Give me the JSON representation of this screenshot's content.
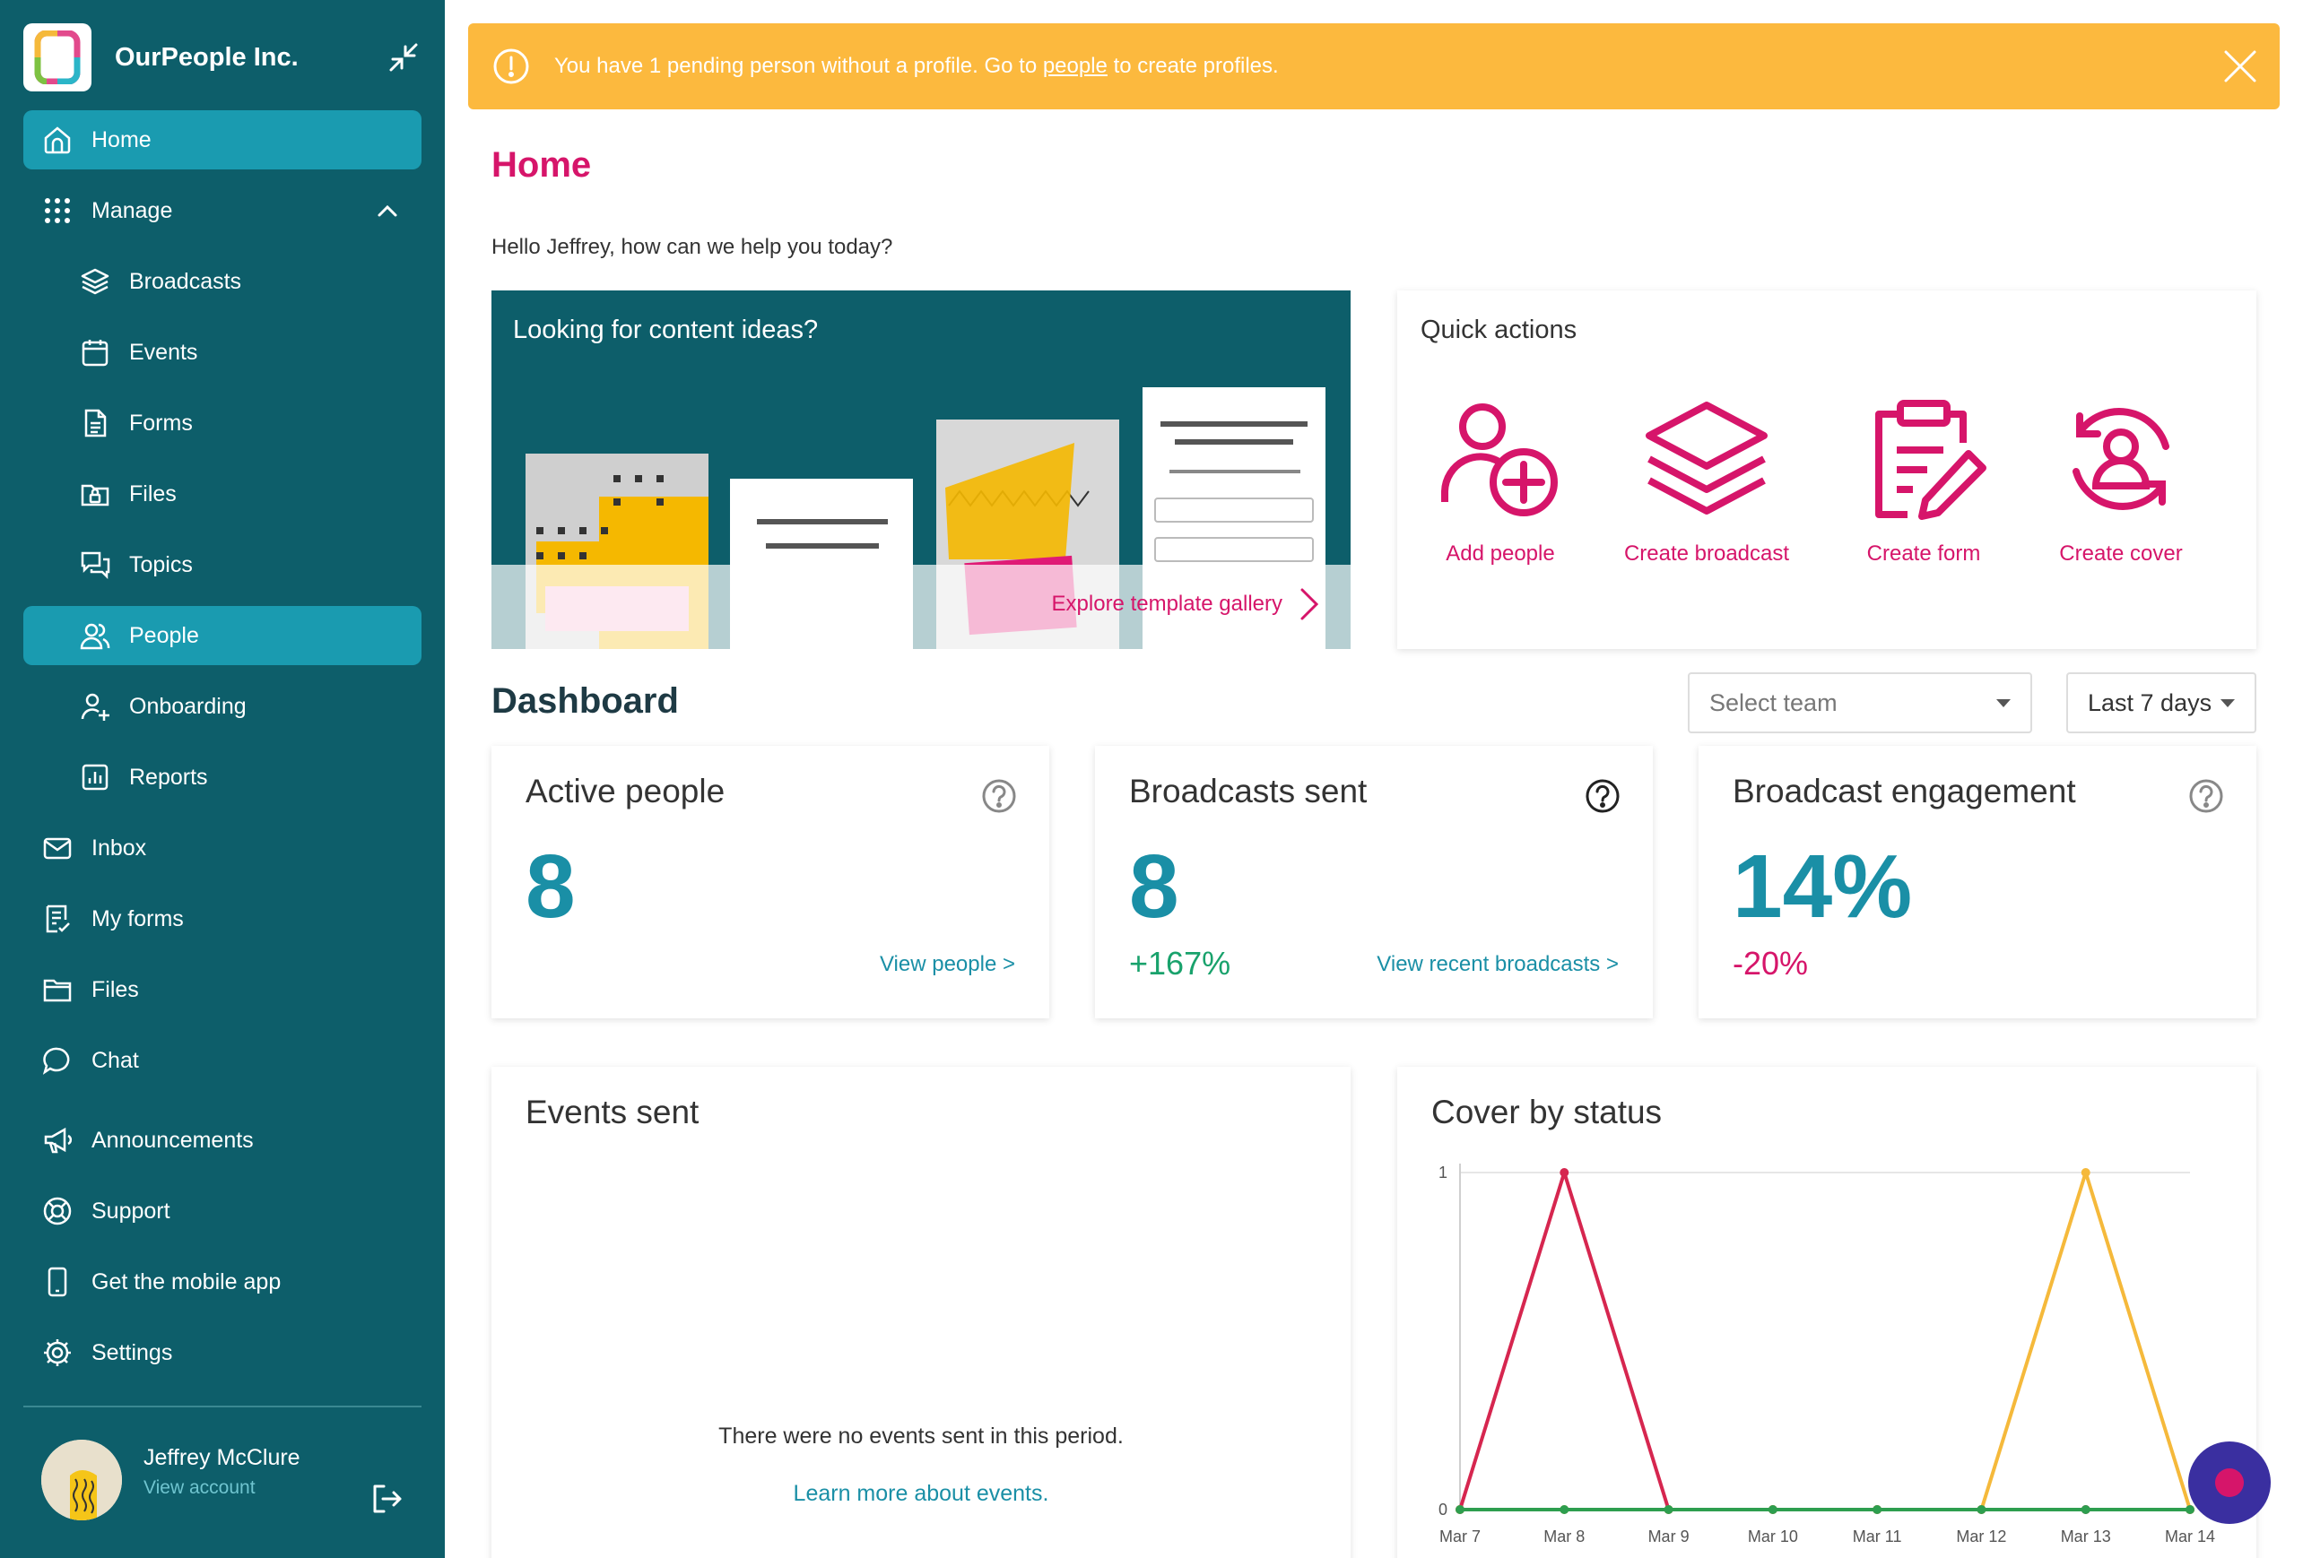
{
  "sidebar": {
    "org_name": "OurPeople Inc.",
    "items": [
      {
        "label": "Home",
        "icon": "home-icon",
        "active": true,
        "sub": false
      },
      {
        "label": "Manage",
        "icon": "grid-icon",
        "active": false,
        "sub": false,
        "expanded": true
      },
      {
        "label": "Broadcasts",
        "icon": "layers-icon",
        "active": false,
        "sub": true
      },
      {
        "label": "Events",
        "icon": "calendar-icon",
        "active": false,
        "sub": true
      },
      {
        "label": "Forms",
        "icon": "document-icon",
        "active": false,
        "sub": true
      },
      {
        "label": "Files",
        "icon": "folder-lock-icon",
        "active": false,
        "sub": true
      },
      {
        "label": "Topics",
        "icon": "chat-bubbles-icon",
        "active": false,
        "sub": true
      },
      {
        "label": "People",
        "icon": "people-icon",
        "active": true,
        "sub": true
      },
      {
        "label": "Onboarding",
        "icon": "user-plus-icon",
        "active": false,
        "sub": true
      },
      {
        "label": "Reports",
        "icon": "bar-chart-icon",
        "active": false,
        "sub": true
      },
      {
        "label": "Inbox",
        "icon": "mail-icon",
        "active": false,
        "sub": false
      },
      {
        "label": "My forms",
        "icon": "form-check-icon",
        "active": false,
        "sub": false
      },
      {
        "label": "Files",
        "icon": "folder-icon",
        "active": false,
        "sub": false
      },
      {
        "label": "Chat",
        "icon": "chat-icon",
        "active": false,
        "sub": false
      },
      {
        "label": "Announcements",
        "icon": "megaphone-icon",
        "active": false,
        "sub": false
      },
      {
        "label": "Support",
        "icon": "lifebuoy-icon",
        "active": false,
        "sub": false
      },
      {
        "label": "Get the mobile app",
        "icon": "mobile-icon",
        "active": false,
        "sub": false
      },
      {
        "label": "Settings",
        "icon": "gear-icon",
        "active": false,
        "sub": false
      }
    ],
    "user": {
      "name": "Jeffrey McClure",
      "link": "View account"
    }
  },
  "banner": {
    "text_before": "You have 1 pending person without a profile. Go to ",
    "link": "people",
    "text_after": " to create profiles."
  },
  "page": {
    "title": "Home",
    "greeting": "Hello Jeffrey, how can we help you today?"
  },
  "ideas": {
    "title": "Looking for content ideas?",
    "link": "Explore template gallery"
  },
  "quick_actions": {
    "title": "Quick actions",
    "items": [
      {
        "label": "Add people",
        "icon": "add-person-icon"
      },
      {
        "label": "Create broadcast",
        "icon": "layers-icon"
      },
      {
        "label": "Create form",
        "icon": "clipboard-edit-icon"
      },
      {
        "label": "Create cover",
        "icon": "person-refresh-icon"
      }
    ]
  },
  "dashboard": {
    "title": "Dashboard",
    "team_placeholder": "Select team",
    "range": "Last 7 days",
    "stats": [
      {
        "title": "Active people",
        "value": "8",
        "change": "",
        "link": "View people >"
      },
      {
        "title": "Broadcasts sent",
        "value": "8",
        "change": "+167%",
        "link": "View recent broadcasts >"
      },
      {
        "title": "Broadcast engagement",
        "value": "14%",
        "change": "-20%",
        "link": ""
      }
    ]
  },
  "events_panel": {
    "title": "Events sent",
    "empty": "There were no events sent in this period.",
    "link": "Learn more about events."
  },
  "cover_panel": {
    "title": "Cover by status"
  },
  "chart_data": {
    "type": "line",
    "title": "Cover by status",
    "x": [
      "Mar 7",
      "Mar 8",
      "Mar 9",
      "Mar 10",
      "Mar 11",
      "Mar 12",
      "Mar 13",
      "Mar 14"
    ],
    "ylim": [
      0,
      1
    ],
    "yticks": [
      "0",
      "1"
    ],
    "series": [
      {
        "color": "#d6264f",
        "values": [
          0,
          1,
          0,
          0,
          0,
          0,
          0,
          0
        ]
      },
      {
        "color": "#f5b93b",
        "values": [
          0,
          0,
          0,
          0,
          0,
          0,
          1,
          0
        ]
      },
      {
        "color": "#2e9e4f",
        "values": [
          0,
          0,
          0,
          0,
          0,
          0,
          0,
          0
        ]
      }
    ],
    "grid": true
  }
}
